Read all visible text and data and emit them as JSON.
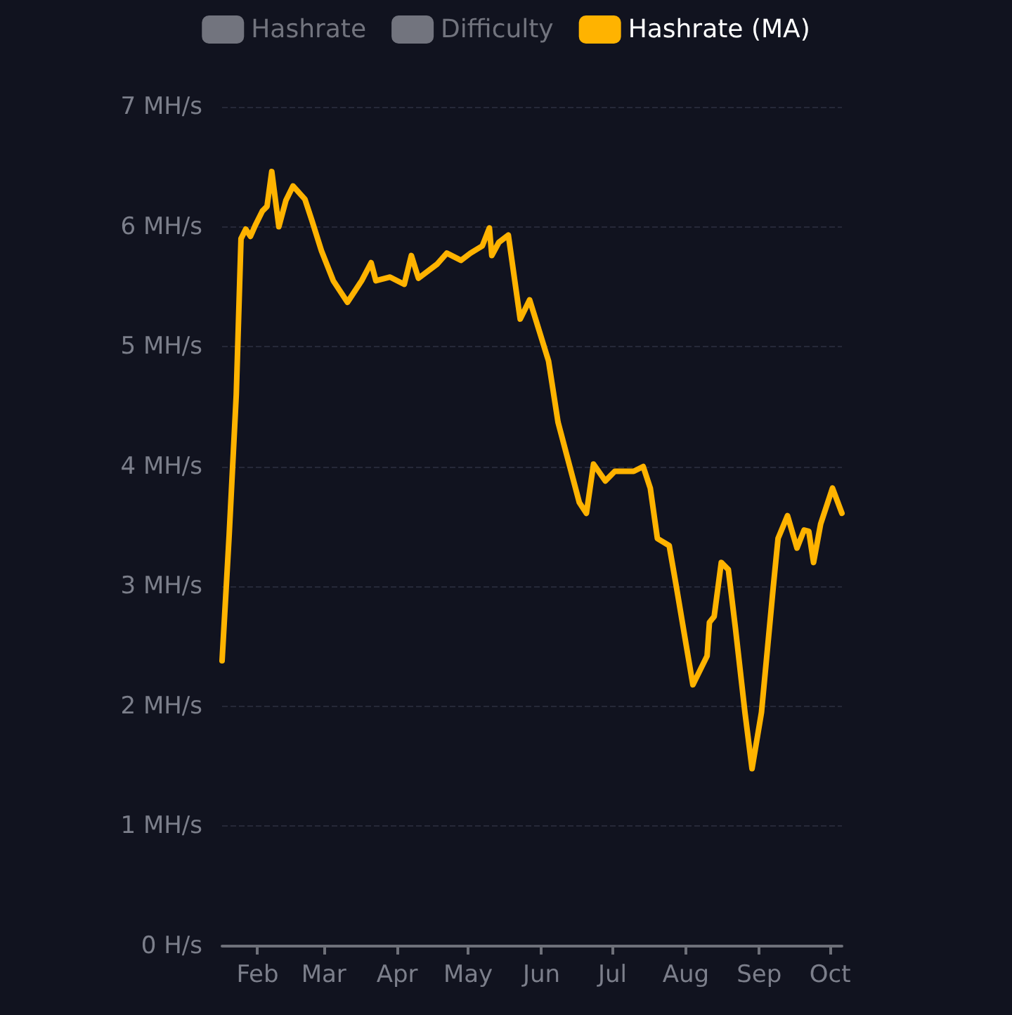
{
  "chart_data": {
    "type": "line",
    "x": [
      "--01-17",
      "--01-20",
      "--01-23",
      "--01-25",
      "--01-27",
      "--01-29",
      "--01-31",
      "--02-03",
      "--02-05",
      "--02-07",
      "--02-10",
      "--02-13",
      "--02-16",
      "--02-21",
      "--02-24",
      "--02-28",
      "--03-05",
      "--03-11",
      "--03-17",
      "--03-21",
      "--03-23",
      "--03-29",
      "--04-04",
      "--04-07",
      "--04-10",
      "--04-18",
      "--04-22",
      "--04-28",
      "--05-02",
      "--05-07",
      "--05-10",
      "--05-11",
      "--05-14",
      "--05-18",
      "--05-23",
      "--05-27",
      "--06-04",
      "--06-08",
      "--06-17",
      "--06-20",
      "--06-23",
      "--06-28",
      "--07-02",
      "--07-10",
      "--07-14",
      "--07-17",
      "--07-20",
      "--07-25",
      "--07-28",
      "--08-01",
      "--08-04",
      "--08-10",
      "--08-11",
      "--08-13",
      "--08-16",
      "--08-19",
      "--08-22",
      "--08-26",
      "--08-29",
      "--09-02",
      "--09-07",
      "--09-09",
      "--09-13",
      "--09-17",
      "--09-20",
      "--09-22",
      "--09-24",
      "--09-27",
      "--10-02",
      "--10-06"
    ],
    "series": [
      {
        "name": "Hashrate",
        "color": "#72747e",
        "values": [
          null,
          null,
          null,
          null,
          null,
          null,
          null,
          null,
          null,
          null,
          null,
          null,
          null,
          null,
          null,
          null,
          null,
          null,
          null,
          null,
          null,
          null,
          null,
          null,
          null,
          null,
          null,
          null,
          null,
          null,
          null,
          null,
          null,
          null,
          null,
          null,
          null,
          null,
          null,
          null,
          null,
          null,
          null,
          null,
          null,
          null,
          null,
          null,
          null,
          null,
          null,
          null,
          null,
          null,
          null,
          null,
          null,
          null,
          null,
          null,
          null,
          null,
          null,
          null,
          null,
          null,
          null,
          null,
          null,
          null
        ]
      },
      {
        "name": "Difficulty",
        "color": "#72747e",
        "values": [
          null,
          null,
          null,
          null,
          null,
          null,
          null,
          null,
          null,
          null,
          null,
          null,
          null,
          null,
          null,
          null,
          null,
          null,
          null,
          null,
          null,
          null,
          null,
          null,
          null,
          null,
          null,
          null,
          null,
          null,
          null,
          null,
          null,
          null,
          null,
          null,
          null,
          null,
          null,
          null,
          null,
          null,
          null,
          null,
          null,
          null,
          null,
          null,
          null,
          null,
          null,
          null,
          null,
          null,
          null,
          null,
          null,
          null,
          null,
          null,
          null,
          null,
          null,
          null,
          null,
          null,
          null,
          null,
          null,
          null
        ]
      },
      {
        "name": "Hashrate (MA)",
        "color": "#ffb300",
        "values": [
          2.38,
          3.43,
          4.6,
          5.9,
          5.98,
          5.92,
          6.01,
          6.13,
          6.17,
          6.46,
          6.0,
          6.22,
          6.34,
          6.23,
          6.05,
          5.8,
          5.55,
          5.37,
          5.55,
          5.7,
          5.55,
          5.58,
          5.52,
          5.76,
          5.57,
          5.69,
          5.78,
          5.72,
          5.78,
          5.84,
          5.99,
          5.76,
          5.87,
          5.93,
          5.23,
          5.39,
          4.88,
          4.37,
          3.7,
          3.61,
          4.02,
          3.88,
          3.96,
          3.96,
          4.0,
          3.82,
          3.4,
          3.34,
          3.0,
          2.53,
          2.18,
          2.42,
          2.7,
          2.75,
          3.2,
          3.14,
          2.65,
          1.95,
          1.48,
          1.95,
          3.0,
          3.4,
          3.59,
          3.32,
          3.47,
          3.46,
          3.2,
          3.52,
          3.82,
          3.61
        ]
      }
    ],
    "xlim": [
      "--01-17",
      "--10-06"
    ],
    "xticks": [
      {
        "value": "--02-01",
        "label": "Feb"
      },
      {
        "value": "--03-01",
        "label": "Mar"
      },
      {
        "value": "--04-01",
        "label": "Apr"
      },
      {
        "value": "--05-01",
        "label": "May"
      },
      {
        "value": "--06-01",
        "label": "Jun"
      },
      {
        "value": "--07-01",
        "label": "Jul"
      },
      {
        "value": "--08-01",
        "label": "Aug"
      },
      {
        "value": "--09-01",
        "label": "Sep"
      },
      {
        "value": "--10-01",
        "label": "Oct"
      }
    ],
    "ylim": [
      0,
      7
    ],
    "yticks": [
      {
        "value": 0,
        "label": "0 H/s"
      },
      {
        "value": 1,
        "label": "1 MH/s"
      },
      {
        "value": 2,
        "label": "2 MH/s"
      },
      {
        "value": 3,
        "label": "3 MH/s"
      },
      {
        "value": 4,
        "label": "4 MH/s"
      },
      {
        "value": 5,
        "label": "5 MH/s"
      },
      {
        "value": 6,
        "label": "6 MH/s"
      },
      {
        "value": 7,
        "label": "7 MH/s"
      }
    ],
    "grid": "y",
    "legend": "top",
    "marker": "none",
    "line_style": "solid"
  }
}
